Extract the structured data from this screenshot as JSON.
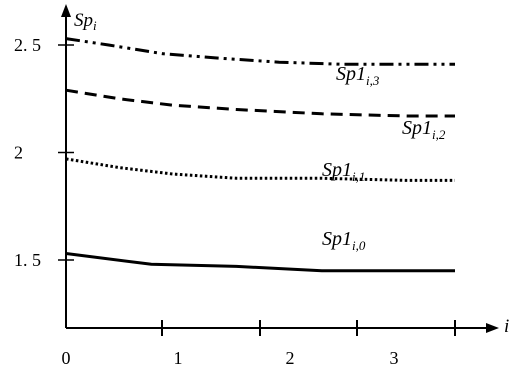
{
  "chart_data": {
    "type": "line",
    "ylabel_base": "Sp",
    "ylabel_sub": "i",
    "xlabel": "i",
    "x_ticks": [
      "0",
      "1",
      "2",
      "3"
    ],
    "y_ticks": [
      "1. 5",
      "2",
      "2. 5"
    ],
    "y_tick_values": [
      1.5,
      2.0,
      2.5
    ],
    "xlim": [
      0,
      3.7
    ],
    "ylim": [
      1.0,
      3.2
    ],
    "grid": false,
    "legend": "inline",
    "series": [
      {
        "name_base": "Sp1",
        "name_sub": "i,0",
        "style": "solid",
        "x": [
          0,
          0.8,
          1.6,
          2.4,
          3.2,
          3.65
        ],
        "y": [
          1.53,
          1.48,
          1.47,
          1.45,
          1.45,
          1.45
        ]
      },
      {
        "name_base": "Sp1",
        "name_sub": "i,1",
        "style": "dotted",
        "x": [
          0,
          0.5,
          1.0,
          1.6,
          2.4,
          3.2,
          3.65
        ],
        "y": [
          1.97,
          1.93,
          1.9,
          1.88,
          1.88,
          1.87,
          1.87
        ]
      },
      {
        "name_base": "Sp1",
        "name_sub": "i,2",
        "style": "dashed",
        "x": [
          0,
          0.5,
          1.0,
          1.6,
          2.4,
          3.2,
          3.65
        ],
        "y": [
          2.29,
          2.25,
          2.22,
          2.2,
          2.18,
          2.17,
          2.17
        ]
      },
      {
        "name_base": "Sp1",
        "name_sub": "i,3",
        "style": "dashdot",
        "x": [
          0,
          0.4,
          0.9,
          1.4,
          2.0,
          2.6,
          3.2,
          3.65
        ],
        "y": [
          2.53,
          2.5,
          2.46,
          2.44,
          2.42,
          2.41,
          2.41,
          2.41
        ]
      }
    ]
  }
}
